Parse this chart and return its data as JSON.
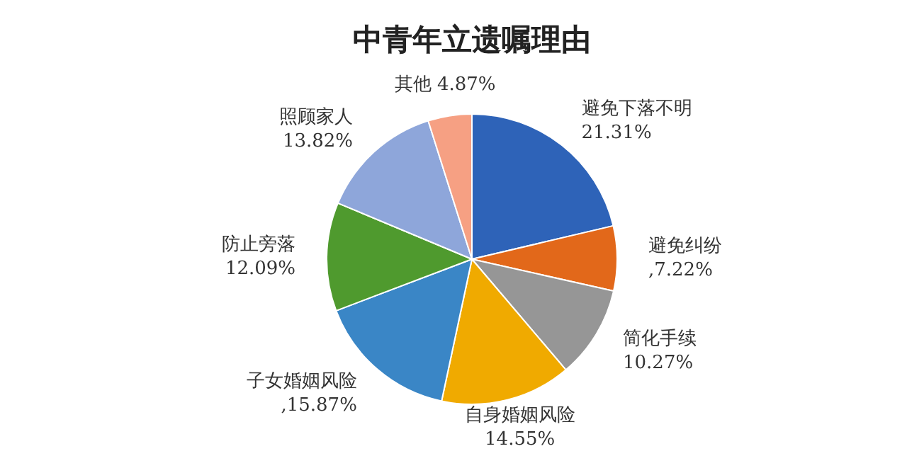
{
  "chart_data": {
    "type": "pie",
    "title": "中青年立遗嘱理由",
    "categories": [
      "避免下落不明",
      "避免纠纷",
      "简化手续",
      "自身婚姻风险",
      "子女婚姻风险",
      "防止旁落",
      "照顾家人",
      "其他"
    ],
    "values": [
      21.31,
      7.22,
      10.27,
      14.55,
      15.87,
      12.09,
      13.82,
      4.87
    ],
    "value_labels": [
      "21.31%",
      ",7.22%",
      "10.27%",
      "14.55%",
      ",15.87%",
      "12.09%",
      "13.82%",
      " 4.87%"
    ],
    "colors": [
      "#2e63b8",
      "#e2681a",
      "#969696",
      "#f0aa00",
      "#3a86c6",
      "#4f9a2e",
      "#8ea6da",
      "#f6a083"
    ],
    "legend": false
  }
}
